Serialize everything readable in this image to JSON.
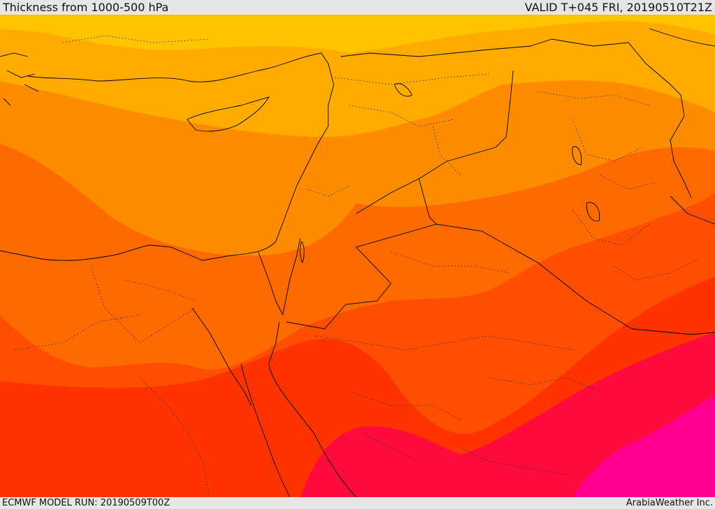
{
  "header": {
    "title": "Thickness from 1000-500 hPa",
    "valid_time": "VALID T+045 FRI, 20190510T21Z"
  },
  "footer": {
    "model_run": "ECMWF MODEL RUN: 20190509T00Z",
    "credit": "ArabiaWeather Inc."
  },
  "map": {
    "variable": "1000-500 hPa thickness",
    "color_bands": [
      "#ffc400",
      "#ffab00",
      "#ff8c00",
      "#ff6a00",
      "#ff4e00",
      "#ff3300",
      "#ff0a3c",
      "#ff0090"
    ]
  }
}
